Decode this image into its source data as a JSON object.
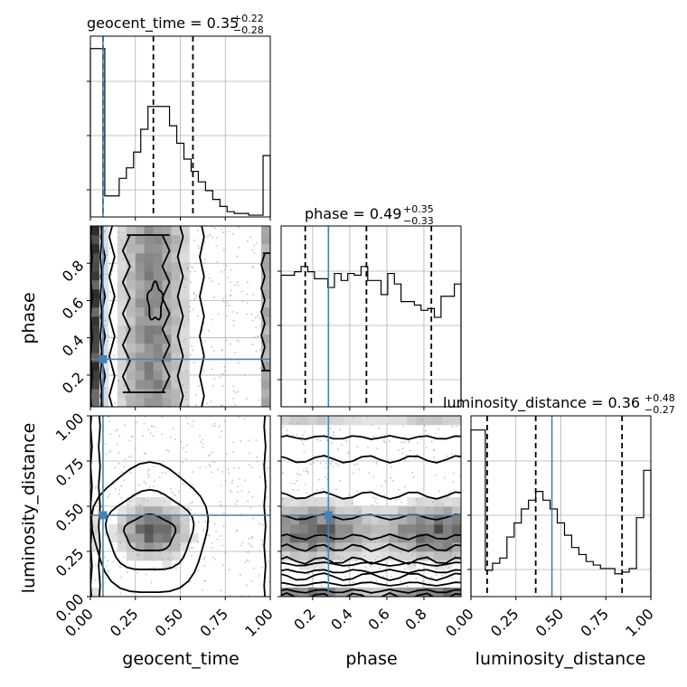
{
  "chart_data": {
    "type": "corner",
    "parameters": [
      "geocent_time",
      "phase",
      "luminosity_distance"
    ],
    "titles": [
      {
        "param": "geocent_time",
        "main": "geocent_time = 0.35",
        "plus": "+0.22",
        "minus": "−0.28"
      },
      {
        "param": "phase",
        "main": "phase = 0.49",
        "plus": "+0.35",
        "minus": "−0.33"
      },
      {
        "param": "luminosity_distance",
        "main": "luminosity_distance = 0.36",
        "plus": "+0.48",
        "minus": "−0.27"
      }
    ],
    "truths": {
      "geocent_time": 0.07,
      "phase": 0.285,
      "luminosity_distance": 0.45
    },
    "quantiles": {
      "geocent_time": [
        0.07,
        0.35,
        0.57
      ],
      "phase": [
        0.16,
        0.49,
        0.84
      ],
      "luminosity_distance": [
        0.09,
        0.36,
        0.84
      ]
    },
    "ranges": {
      "geocent_time": [
        0.0,
        1.0
      ],
      "phase": [
        0.03,
        1.0
      ],
      "luminosity_distance": [
        0.0,
        1.0
      ]
    },
    "ticks": {
      "geocent_time": [
        {
          "v": 0.0,
          "label": "0.00"
        },
        {
          "v": 0.25,
          "label": "0.25"
        },
        {
          "v": 0.5,
          "label": "0.50"
        },
        {
          "v": 0.75,
          "label": "0.75"
        },
        {
          "v": 1.0,
          "label": "1.00"
        }
      ],
      "phase": [
        {
          "v": 0.2,
          "label": "0.2"
        },
        {
          "v": 0.4,
          "label": "0.4"
        },
        {
          "v": 0.6,
          "label": "0.6"
        },
        {
          "v": 0.8,
          "label": "0.8"
        }
      ],
      "luminosity_distance": [
        {
          "v": 0.0,
          "label": "0.00"
        },
        {
          "v": 0.25,
          "label": "0.25"
        },
        {
          "v": 0.5,
          "label": "0.50"
        },
        {
          "v": 0.75,
          "label": "0.75"
        },
        {
          "v": 1.0,
          "label": "1.00"
        }
      ]
    },
    "histograms": {
      "geocent_time": [
        0.96,
        0.96,
        0.12,
        0.12,
        0.22,
        0.28,
        0.37,
        0.5,
        0.63,
        0.63,
        0.63,
        0.52,
        0.42,
        0.33,
        0.26,
        0.2,
        0.15,
        0.1,
        0.06,
        0.03,
        0.02,
        0.02,
        0.01,
        0.01,
        0.35
      ],
      "phase": [
        0.75,
        0.75,
        0.77,
        0.8,
        0.77,
        0.73,
        0.73,
        0.68,
        0.76,
        0.72,
        0.76,
        0.75,
        0.8,
        0.72,
        0.72,
        0.64,
        0.76,
        0.7,
        0.6,
        0.6,
        0.58,
        0.55,
        0.56,
        0.51,
        0.63,
        0.63,
        0.7
      ],
      "luminosity_distance": [
        0.95,
        0.95,
        0.15,
        0.19,
        0.22,
        0.34,
        0.42,
        0.5,
        0.55,
        0.6,
        0.55,
        0.5,
        0.42,
        0.35,
        0.28,
        0.24,
        0.2,
        0.18,
        0.16,
        0.16,
        0.13,
        0.14,
        0.16,
        0.45,
        0.72
      ]
    },
    "axis_labels": {
      "geocent_time": "geocent_time",
      "phase": "phase",
      "luminosity_distance": "luminosity_distance"
    },
    "grid": true,
    "contour_levels": 4
  }
}
